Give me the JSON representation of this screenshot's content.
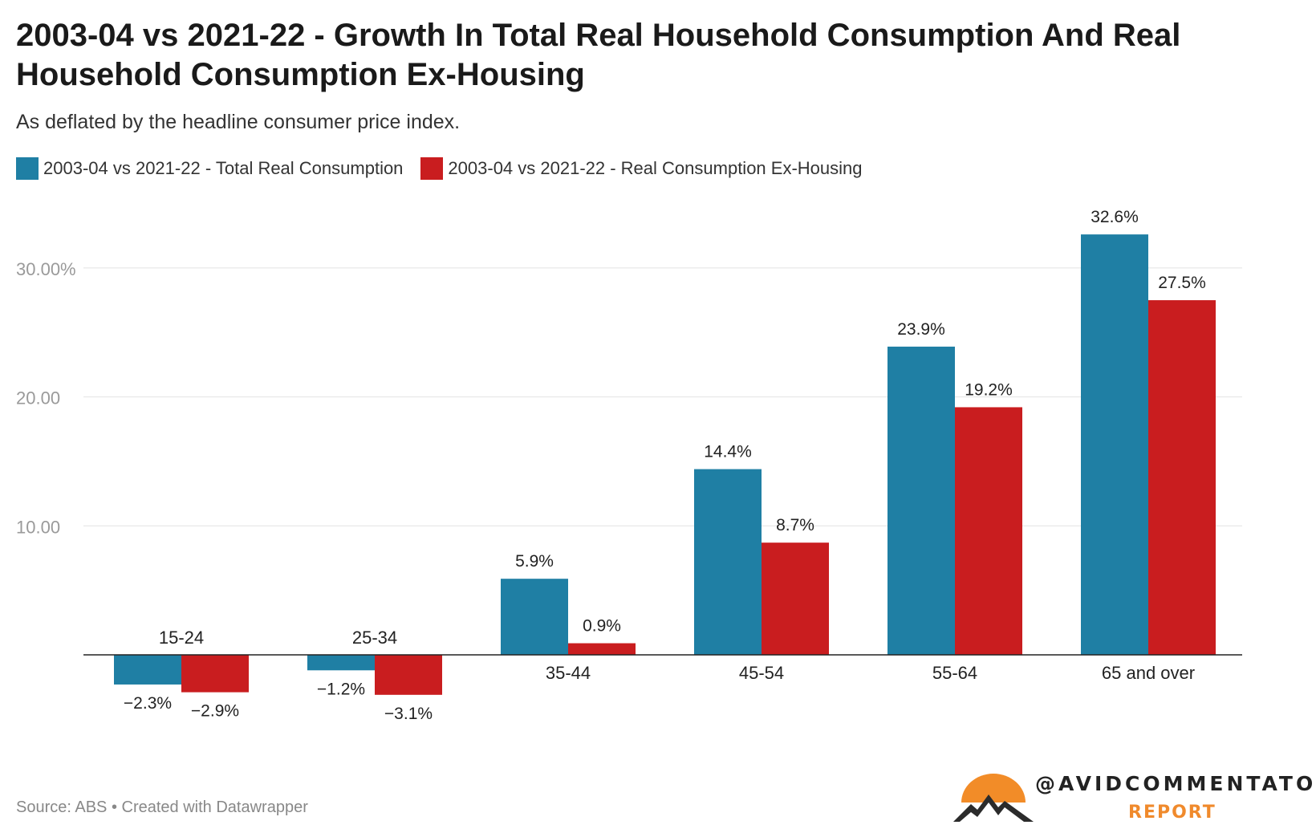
{
  "title": "2003-04 vs 2021-22 - Growth In Total Real Household Consumption And Real Household Consumption Ex-Housing",
  "subtitle": "As deflated by the headline consumer price index.",
  "source": "Source: ABS • Created with Datawrapper",
  "brand": {
    "handle": "@AVIDCOMMENTATOR",
    "sub": "REPORT",
    "logo_icon": "mountain-sun-icon",
    "colors": {
      "sun": "#f28c28",
      "mountain": "#2b2b2b"
    }
  },
  "chart_data": {
    "type": "bar",
    "categories": [
      "15-24",
      "25-34",
      "35-44",
      "45-54",
      "55-64",
      "65 and over"
    ],
    "series": [
      {
        "name": "2003-04 vs 2021-22 - Total Real Consumption",
        "color": "#1f7fa4",
        "values": [
          -2.3,
          -1.2,
          5.9,
          14.4,
          23.9,
          32.6
        ],
        "labels": [
          "−2.3%",
          "−1.2%",
          "5.9%",
          "14.4%",
          "23.9%",
          "32.6%"
        ]
      },
      {
        "name": "2003-04 vs 2021-22 - Real Consumption Ex-Housing",
        "color": "#c91d1f",
        "values": [
          -2.9,
          -3.1,
          0.9,
          8.7,
          19.2,
          27.5
        ],
        "labels": [
          "−2.9%",
          "−3.1%",
          "0.9%",
          "8.7%",
          "19.2%",
          "27.5%"
        ]
      }
    ],
    "y_ticks": [
      10,
      20,
      30
    ],
    "y_tick_labels": [
      "10.00",
      "20.00",
      "30.00%"
    ],
    "ylim": [
      -3.6,
      35
    ],
    "grid": true,
    "legend_position": "top-left"
  }
}
